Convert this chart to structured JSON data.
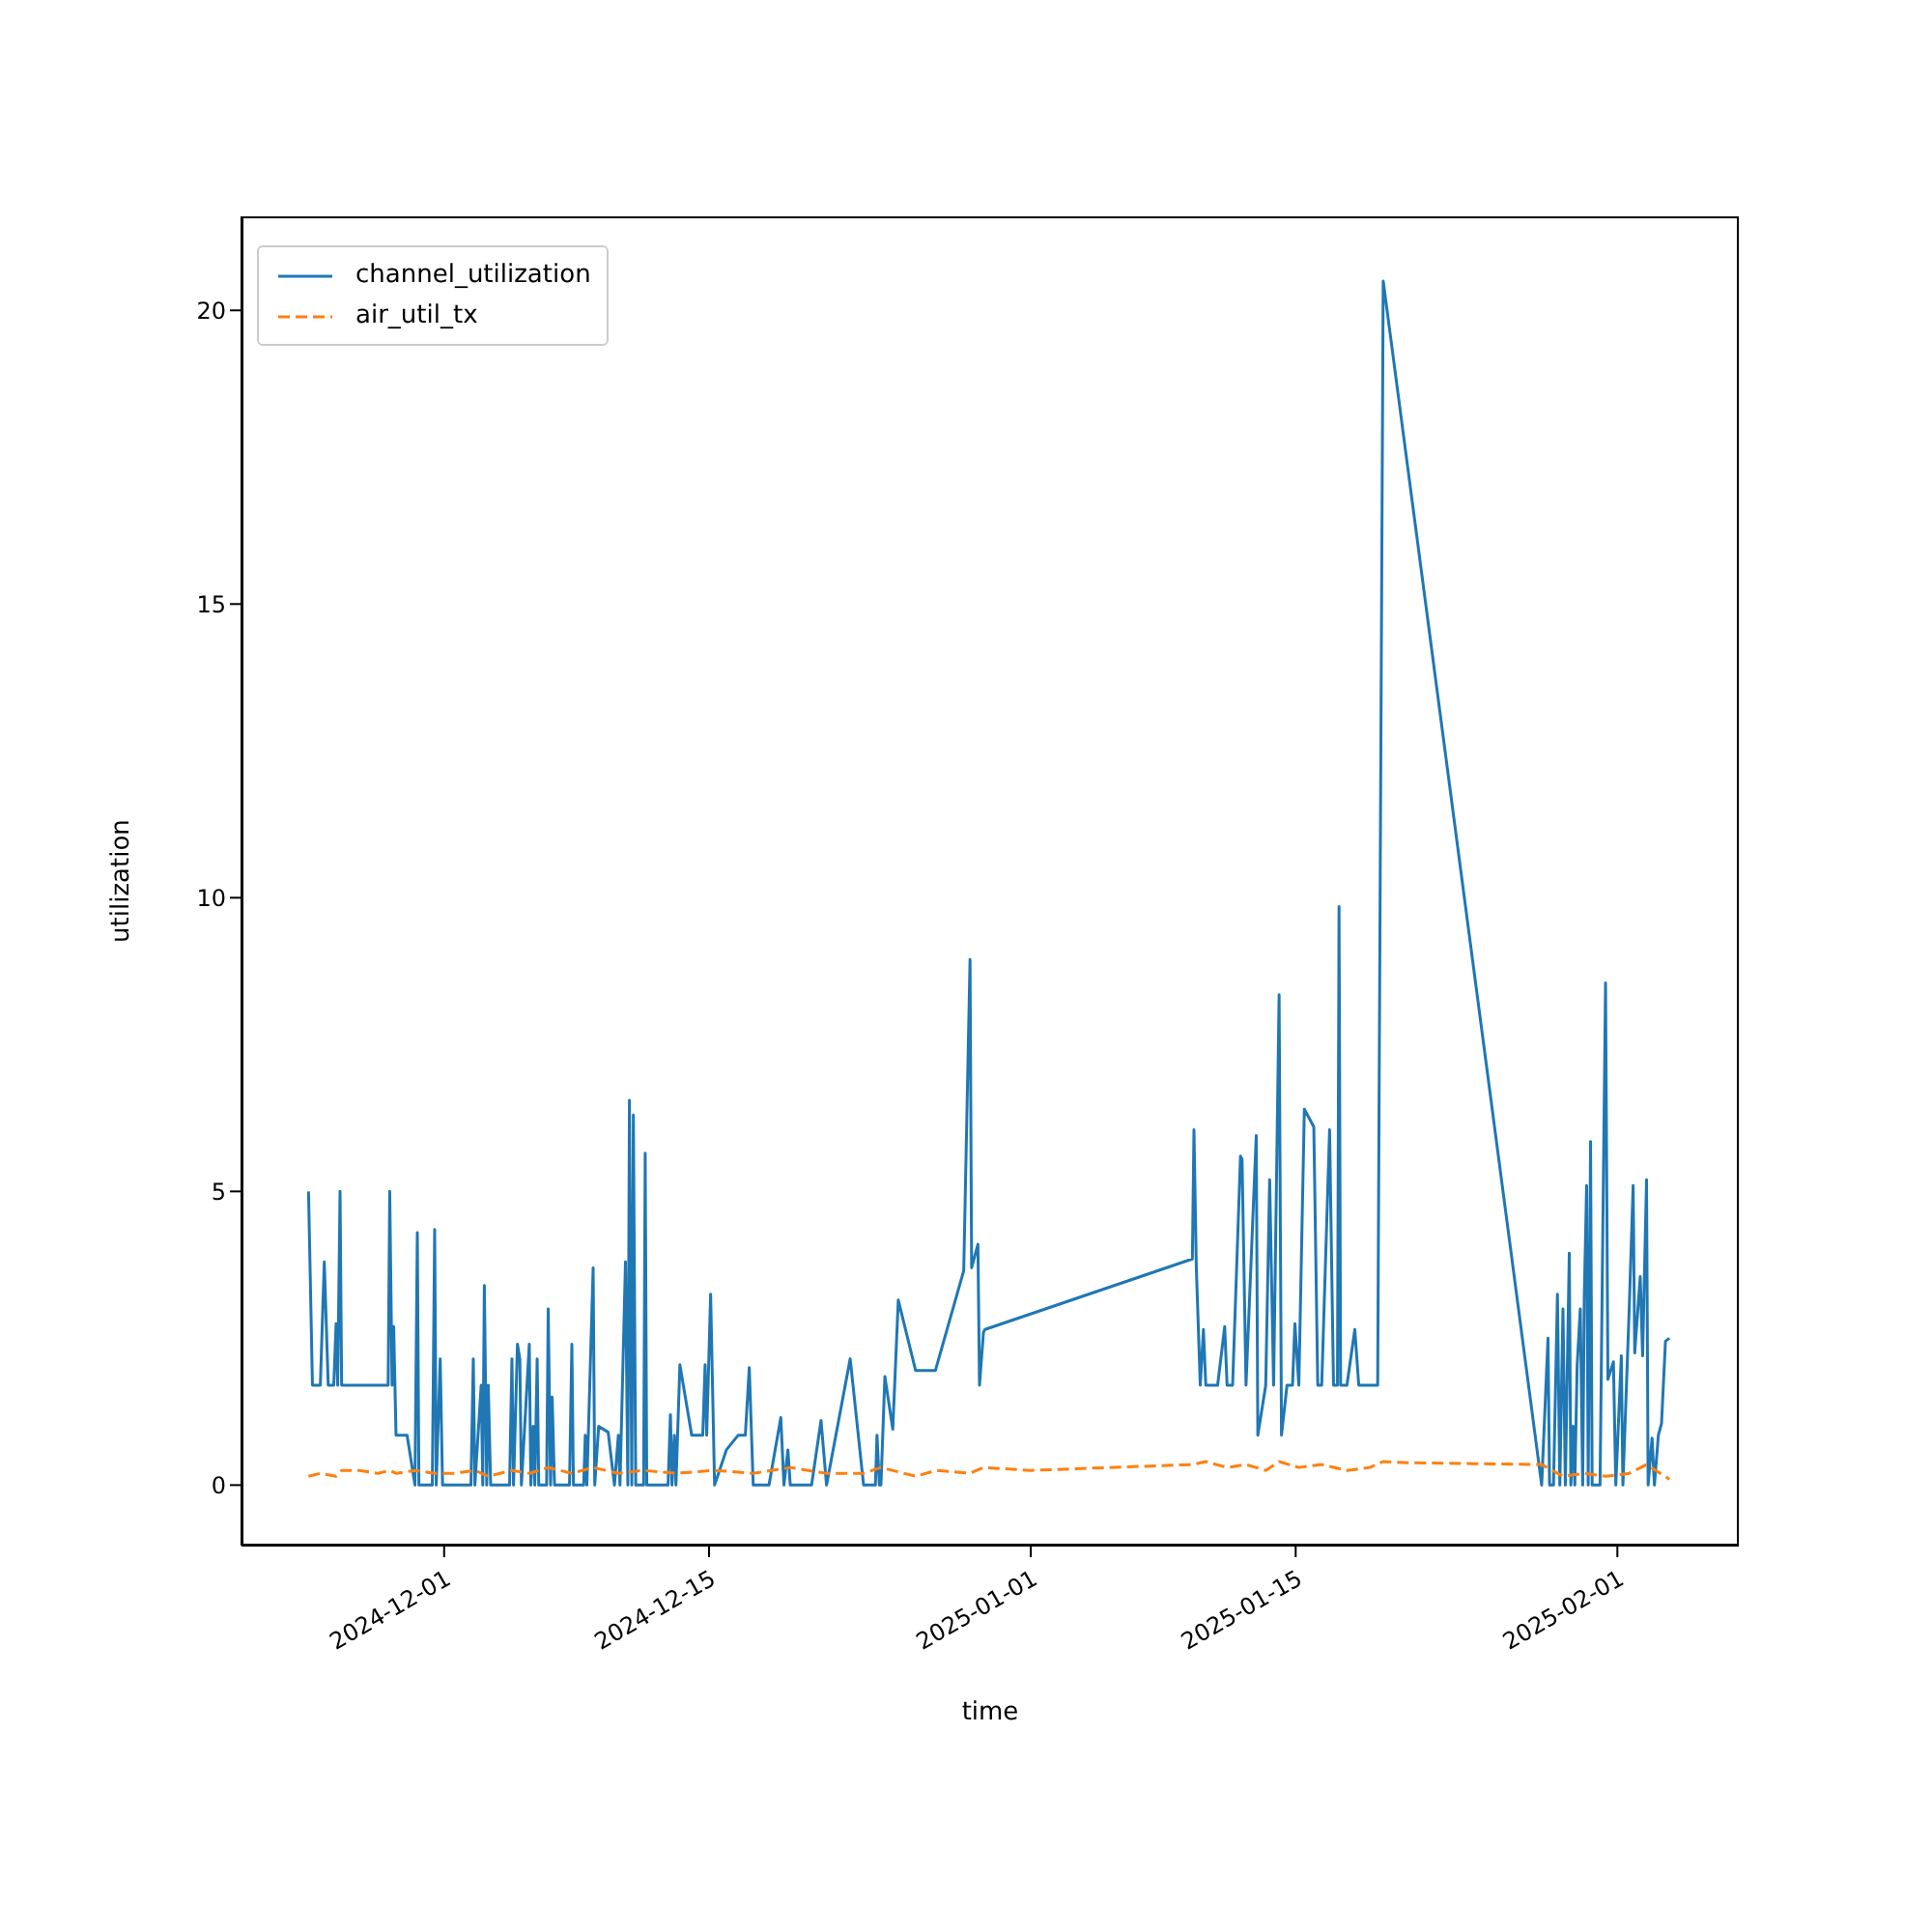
{
  "chart_data": {
    "type": "line",
    "xlabel": "time",
    "ylabel": "utilization",
    "xlim": [
      "2024-11-20T07:00",
      "2025-02-07T10:00"
    ],
    "xticks": [
      "2024-12-01",
      "2024-12-15",
      "2025-01-01",
      "2025-01-15",
      "2025-02-01"
    ],
    "ylim": [
      -1.03,
      21.6
    ],
    "yticks": [
      0,
      5,
      10,
      15,
      20
    ],
    "grid": false,
    "legend": "top left",
    "series": [
      {
        "name": "channel_utilization",
        "color": "#1f77b4",
        "line_style": "solid",
        "x": [
          "2024-11-23T20:00",
          "2024-11-24T01:00",
          "2024-11-24T11:00",
          "2024-11-24T16:00",
          "2024-11-24T21:00",
          "2024-11-25T04:00",
          "2024-11-25T07:00",
          "2024-11-25T09:00",
          "2024-11-25T12:00",
          "2024-11-25T14:00",
          "2024-11-28T01:00",
          "2024-11-28T03:00",
          "2024-11-28T06:00",
          "2024-11-28T08:00",
          "2024-11-28T11:00",
          "2024-11-29T01:00",
          "2024-11-29T11:00",
          "2024-11-29T14:00",
          "2024-11-29T16:00",
          "2024-11-30T09:00",
          "2024-11-30T12:00",
          "2024-11-30T14:00",
          "2024-11-30T19:00",
          "2024-11-30T22:00",
          "2024-12-02T10:00",
          "2024-12-02T13:00",
          "2024-12-02T15:00",
          "2024-12-02T23:00",
          "2024-12-03T01:00",
          "2024-12-03T03:00",
          "2024-12-03T06:00",
          "2024-12-03T08:00",
          "2024-12-03T11:00",
          "2024-12-04T11:00",
          "2024-12-04T14:00",
          "2024-12-04T16:00",
          "2024-12-04T21:00",
          "2024-12-05T00:00",
          "2024-12-05T02:00",
          "2024-12-05T12:00",
          "2024-12-05T14:00",
          "2024-12-05T17:00",
          "2024-12-05T19:00",
          "2024-12-05T22:00",
          "2024-12-06T00:00",
          "2024-12-06T10:00",
          "2024-12-06T12:00",
          "2024-12-06T15:00",
          "2024-12-06T17:00",
          "2024-12-06T20:00",
          "2024-12-07T15:00",
          "2024-12-07T18:00",
          "2024-12-07T20:00",
          "2024-12-08T09:00",
          "2024-12-08T11:00",
          "2024-12-08T13:00",
          "2024-12-08T21:00",
          "2024-12-08T23:00",
          "2024-12-09T04:00",
          "2024-12-09T16:00",
          "2024-12-10T00:00",
          "2024-12-10T05:00",
          "2024-12-10T07:00",
          "2024-12-10T14:00",
          "2024-12-10T17:00",
          "2024-12-10T19:00",
          "2024-12-10T22:00",
          "2024-12-11T00:00",
          "2024-12-11T03:00",
          "2024-12-11T13:00",
          "2024-12-11T15:00",
          "2024-12-11T17:00",
          "2024-12-12T20:00",
          "2024-12-12T23:00",
          "2024-12-13T01:00",
          "2024-12-13T04:00",
          "2024-12-13T06:00",
          "2024-12-13T11:00",
          "2024-12-14T02:00",
          "2024-12-14T16:00",
          "2024-12-14T19:00",
          "2024-12-14T21:00",
          "2024-12-15T02:00",
          "2024-12-15T07:00",
          "2024-12-15T22:00",
          "2024-12-16T13:00",
          "2024-12-16T22:00",
          "2024-12-17T03:00",
          "2024-12-17T08:00",
          "2024-12-18T04:00",
          "2024-12-18T19:00",
          "2024-12-18T23:00",
          "2024-12-19T04:00",
          "2024-12-19T07:00",
          "2024-12-20T10:00",
          "2024-12-20T22:00",
          "2024-12-21T05:00",
          "2024-12-22T11:00",
          "2024-12-23T04:00",
          "2024-12-23T19:00",
          "2024-12-23T21:00",
          "2024-12-24T00:00",
          "2024-12-24T02:00",
          "2024-12-24T07:00",
          "2024-12-24T17:00",
          "2024-12-25T00:00",
          "2024-12-25T22:00",
          "2024-12-26T23:00",
          "2024-12-28T11:00",
          "2024-12-28T19:00",
          "2024-12-28T21:00",
          "2024-12-29T05:00",
          "2024-12-29T07:00",
          "2024-12-29T12:00",
          "2024-12-29T14:00",
          "2025-01-09T13:00",
          "2025-01-09T15:00",
          "2025-01-09T18:00",
          "2025-01-09T23:00",
          "2025-01-10T03:00",
          "2025-01-10T06:00",
          "2025-01-10T21:00",
          "2025-01-11T06:00",
          "2025-01-11T09:00",
          "2025-01-11T16:00",
          "2025-01-12T02:00",
          "2025-01-12T04:00",
          "2025-01-12T09:00",
          "2025-01-12T22:00",
          "2025-01-13T00:00",
          "2025-01-13T10:00",
          "2025-01-13T15:00",
          "2025-01-13T20:00",
          "2025-01-14T03:00",
          "2025-01-14T06:00",
          "2025-01-14T13:00",
          "2025-01-14T20:00",
          "2025-01-14T23:00",
          "2025-01-15T04:00",
          "2025-01-15T11:00",
          "2025-01-15T23:00",
          "2025-01-16T04:00",
          "2025-01-16T09:00",
          "2025-01-16T19:00",
          "2025-01-17T00:00",
          "2025-01-17T05:00",
          "2025-01-17T07:00",
          "2025-01-17T09:00",
          "2025-01-17T17:00",
          "2025-01-18T03:00",
          "2025-01-18T08:00",
          "2025-01-18T22:00",
          "2025-01-19T08:00",
          "2025-01-19T15:00",
          "2025-01-28T00:00",
          "2025-01-28T08:00",
          "2025-01-28T10:00",
          "2025-01-28T15:00",
          "2025-01-28T20:00",
          "2025-01-28T23:00",
          "2025-01-29T03:00",
          "2025-01-29T06:00",
          "2025-01-29T11:00",
          "2025-01-29T13:00",
          "2025-01-29T16:00",
          "2025-01-29T18:00",
          "2025-01-29T21:00",
          "2025-01-30T01:00",
          "2025-01-30T04:00",
          "2025-01-30T06:00",
          "2025-01-30T09:00",
          "2025-01-30T11:00",
          "2025-01-30T14:00",
          "2025-01-30T16:00",
          "2025-01-31T02:00",
          "2025-01-31T09:00",
          "2025-01-31T12:00",
          "2025-01-31T19:00",
          "2025-01-31T22:00",
          "2025-02-01T05:00",
          "2025-02-01T07:00",
          "2025-02-01T15:00",
          "2025-02-01T20:00",
          "2025-02-01T22:00",
          "2025-02-02T05:00",
          "2025-02-02T08:00",
          "2025-02-02T13:00",
          "2025-02-02T15:00",
          "2025-02-02T20:00",
          "2025-02-02T23:00",
          "2025-02-03T04:00",
          "2025-02-03T08:00",
          "2025-02-03T13:00",
          "2025-02-03T18:00"
        ],
        "values": [
          5.0,
          1.7,
          1.7,
          3.8,
          1.7,
          1.7,
          2.75,
          1.7,
          5.0,
          1.7,
          1.7,
          5.0,
          1.7,
          2.7,
          0.85,
          0.85,
          0,
          4.3,
          0,
          0,
          4.35,
          0,
          2.15,
          0,
          0,
          2.15,
          0,
          1.7,
          0,
          3.4,
          0,
          1.7,
          0,
          0,
          2.15,
          0,
          2.4,
          2.15,
          0,
          2.4,
          0,
          1.0,
          0,
          2.15,
          0,
          0,
          3.0,
          0,
          1.5,
          0,
          0,
          2.4,
          0,
          0,
          0.85,
          0,
          3.7,
          0,
          1.0,
          0.9,
          0,
          0.85,
          0,
          3.8,
          0,
          6.55,
          0,
          6.3,
          0,
          0,
          5.65,
          0,
          0,
          1.2,
          0,
          0.85,
          0,
          2.05,
          0.85,
          0.85,
          2.05,
          0.85,
          3.25,
          0,
          0.6,
          0.85,
          0.85,
          2.0,
          0,
          0,
          1.15,
          0,
          0.6,
          0,
          0,
          1.1,
          0,
          2.15,
          0,
          0,
          0.85,
          0,
          0,
          1.85,
          0.95,
          3.15,
          1.95,
          1.95,
          3.65,
          8.95,
          3.7,
          4.1,
          1.7,
          2.6,
          2.65,
          3.85,
          6.05,
          3.7,
          1.7,
          2.65,
          1.7,
          1.7,
          2.7,
          1.7,
          1.7,
          5.6,
          5.55,
          1.7,
          5.95,
          0.85,
          1.7,
          5.2,
          1.7,
          8.35,
          0.85,
          1.7,
          1.7,
          2.75,
          1.7,
          6.4,
          6.1,
          1.7,
          1.7,
          6.05,
          1.7,
          1.7,
          9.85,
          1.7,
          1.7,
          2.65,
          1.7,
          1.7,
          1.7,
          20.5,
          0,
          2.5,
          0,
          0,
          3.25,
          0,
          3.0,
          0,
          3.95,
          0,
          1.0,
          0,
          2.05,
          3.0,
          0,
          3.2,
          5.1,
          0,
          5.85,
          0,
          0,
          8.55,
          1.8,
          2.1,
          0,
          2.2,
          0,
          3.0,
          5.1,
          2.25,
          3.55,
          2.2,
          5.2,
          0,
          0.8,
          0,
          0.85,
          1.05,
          2.45,
          2.5
        ]
      },
      {
        "name": "air_util_tx",
        "color": "#ff7f0e",
        "line_style": "dashed",
        "x": [
          "2024-11-23T20:00",
          "2024-11-24T11:00",
          "2024-11-25T07:00",
          "2024-11-25T14:00",
          "2024-11-26T12:00",
          "2024-11-27T12:00",
          "2024-11-28T03:00",
          "2024-11-28T11:00",
          "2024-11-29T11:00",
          "2024-11-30T12:00",
          "2024-12-01T12:00",
          "2024-12-02T15:00",
          "2024-12-03T08:00",
          "2024-12-04T14:00",
          "2024-12-05T12:00",
          "2024-12-06T12:00",
          "2024-12-07T18:00",
          "2024-12-08T21:00",
          "2024-12-10T05:00",
          "2024-12-11T13:00",
          "2024-12-13T06:00",
          "2024-12-15T07:00",
          "2024-12-17T08:00",
          "2024-12-19T07:00",
          "2024-12-21T05:00",
          "2024-12-23T04:00",
          "2024-12-24T02:00",
          "2024-12-25T22:00",
          "2024-12-27T00:00",
          "2024-12-28T19:00",
          "2024-12-29T12:00",
          "2025-01-01T00:00",
          "2025-01-09T13:00",
          "2025-01-10T06:00",
          "2025-01-11T09:00",
          "2025-01-12T09:00",
          "2025-01-13T10:00",
          "2025-01-14T03:00",
          "2025-01-15T04:00",
          "2025-01-16T09:00",
          "2025-01-17T17:00",
          "2025-01-18T22:00",
          "2025-01-19T15:00",
          "2025-01-21T00:00",
          "2025-01-28T00:00",
          "2025-01-29T03:00",
          "2025-01-30T06:00",
          "2025-01-31T09:00",
          "2025-02-01T15:00",
          "2025-02-02T13:00",
          "2025-02-03T18:00"
        ],
        "values": [
          0.15,
          0.2,
          0.15,
          0.25,
          0.25,
          0.2,
          0.25,
          0.2,
          0.25,
          0.2,
          0.2,
          0.25,
          0.15,
          0.25,
          0.2,
          0.3,
          0.2,
          0.3,
          0.2,
          0.25,
          0.2,
          0.25,
          0.2,
          0.3,
          0.2,
          0.2,
          0.3,
          0.15,
          0.25,
          0.2,
          0.3,
          0.25,
          0.35,
          0.4,
          0.3,
          0.35,
          0.25,
          0.4,
          0.3,
          0.35,
          0.25,
          0.3,
          0.4,
          0.38,
          0.35,
          0.15,
          0.2,
          0.15,
          0.2,
          0.35,
          0.1
        ]
      }
    ]
  }
}
